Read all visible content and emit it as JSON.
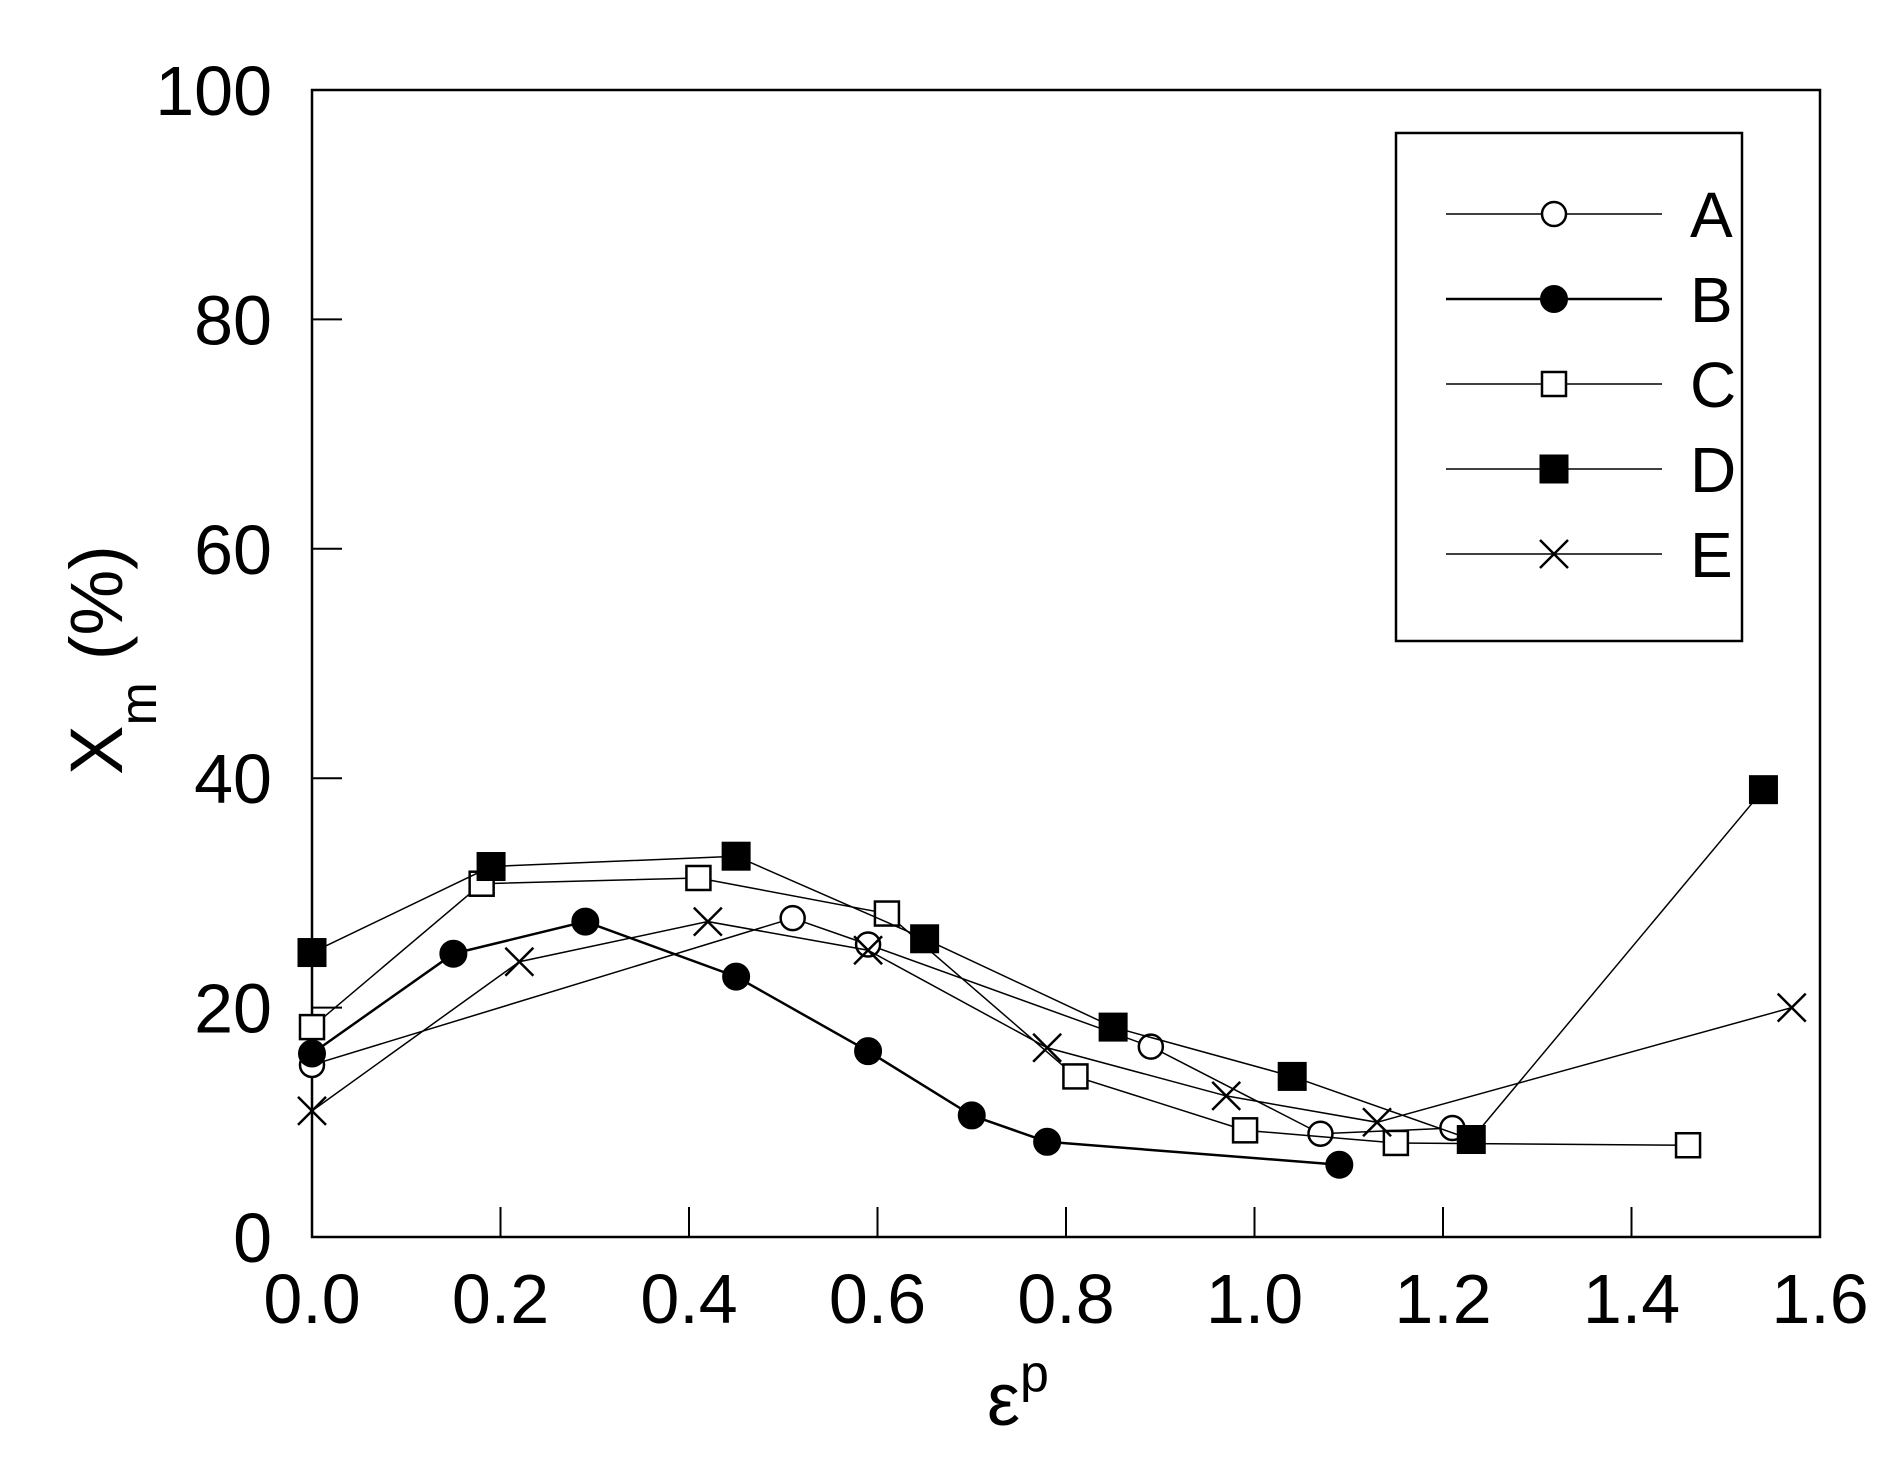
{
  "chart_data": {
    "type": "line",
    "xlabel": "ε",
    "xlabel_sup": "p",
    "ylabel": "X",
    "ylabel_sub": "m",
    "ylabel_unit": "(%)",
    "xlim": [
      0,
      1.6
    ],
    "ylim": [
      0,
      100
    ],
    "xticks": [
      0.0,
      0.2,
      0.4,
      0.6,
      0.8,
      1.0,
      1.2,
      1.4,
      1.6
    ],
    "xtick_labels": [
      "0.0",
      "0.2",
      "0.4",
      "0.6",
      "0.8",
      "1.0",
      "1.2",
      "1.4",
      "1.6"
    ],
    "yticks": [
      0,
      20,
      40,
      60,
      80,
      100
    ],
    "ytick_labels": [
      "0",
      "20",
      "40",
      "60",
      "80",
      "100"
    ],
    "grid": false,
    "legend_position": "top-right",
    "series": [
      {
        "name": "A",
        "marker": "circle-open",
        "line_width": 1.5,
        "points": [
          [
            0.0,
            15.0
          ],
          [
            0.51,
            27.8
          ],
          [
            0.59,
            25.5
          ],
          [
            0.89,
            16.6
          ],
          [
            1.07,
            9.0
          ],
          [
            1.21,
            9.5
          ]
        ]
      },
      {
        "name": "B",
        "marker": "circle-filled",
        "line_width": 2.5,
        "points": [
          [
            0.0,
            16.0
          ],
          [
            0.15,
            24.7
          ],
          [
            0.29,
            27.5
          ],
          [
            0.45,
            22.7
          ],
          [
            0.59,
            16.2
          ],
          [
            0.7,
            10.6
          ],
          [
            0.78,
            8.3
          ],
          [
            1.09,
            6.3
          ]
        ]
      },
      {
        "name": "C",
        "marker": "square-open",
        "line_width": 1.5,
        "points": [
          [
            0.0,
            18.3
          ],
          [
            0.18,
            30.8
          ],
          [
            0.41,
            31.3
          ],
          [
            0.61,
            28.2
          ],
          [
            0.81,
            14.0
          ],
          [
            0.99,
            9.3
          ],
          [
            1.15,
            8.2
          ],
          [
            1.46,
            8.0
          ]
        ]
      },
      {
        "name": "D",
        "marker": "square-filled",
        "line_width": 1.5,
        "points": [
          [
            0.0,
            24.8
          ],
          [
            0.19,
            32.3
          ],
          [
            0.45,
            33.2
          ],
          [
            0.65,
            26.0
          ],
          [
            0.85,
            18.3
          ],
          [
            1.04,
            14.0
          ],
          [
            1.23,
            8.5
          ],
          [
            1.54,
            39.0
          ]
        ]
      },
      {
        "name": "E",
        "marker": "x",
        "line_width": 1.5,
        "points": [
          [
            0.0,
            11.0
          ],
          [
            0.22,
            24.0
          ],
          [
            0.42,
            27.5
          ],
          [
            0.59,
            25.0
          ],
          [
            0.78,
            16.5
          ],
          [
            0.97,
            12.3
          ],
          [
            1.13,
            10.0
          ],
          [
            1.57,
            20.0
          ]
        ]
      }
    ]
  }
}
